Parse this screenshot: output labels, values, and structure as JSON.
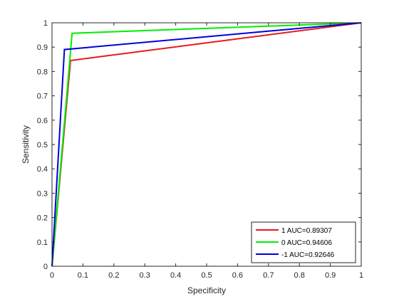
{
  "chart_data": {
    "type": "line",
    "title": "",
    "xlabel": "Specificity",
    "ylabel": "Sensitivity",
    "xlim": [
      0,
      1
    ],
    "ylim": [
      0,
      1
    ],
    "xticks": [
      "0",
      "0.1",
      "0.2",
      "0.3",
      "0.4",
      "0.5",
      "0.6",
      "0.7",
      "0.8",
      "0.9",
      "1"
    ],
    "yticks": [
      "0",
      "0.1",
      "0.2",
      "0.3",
      "0.4",
      "0.5",
      "0.6",
      "0.7",
      "0.8",
      "0.9",
      "1"
    ],
    "grid": false,
    "legend_position": "bottom-right",
    "series": [
      {
        "name": "1 AUC=0.89307",
        "color": "#e41a1c",
        "x": [
          0,
          0.06,
          1
        ],
        "y": [
          0,
          0.845,
          1
        ]
      },
      {
        "name": "0 AUC=0.94606",
        "color": "#00ee00",
        "x": [
          0,
          0.065,
          1
        ],
        "y": [
          0,
          0.957,
          1
        ]
      },
      {
        "name": "-1 AUC=0.92646",
        "color": "#0000dd",
        "x": [
          0,
          0.04,
          1
        ],
        "y": [
          0,
          0.89,
          1
        ]
      }
    ]
  }
}
